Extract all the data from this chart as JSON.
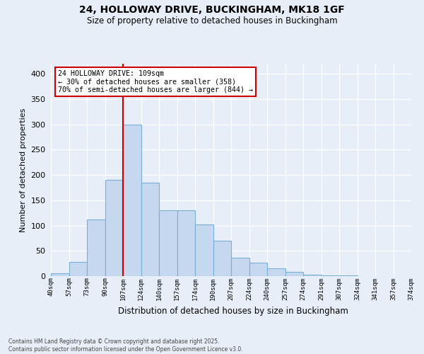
{
  "title1": "24, HOLLOWAY DRIVE, BUCKINGHAM, MK18 1GF",
  "title2": "Size of property relative to detached houses in Buckingham",
  "xlabel": "Distribution of detached houses by size in Buckingham",
  "ylabel": "Number of detached properties",
  "bar_labels": [
    "40sqm",
    "57sqm",
    "73sqm",
    "90sqm",
    "107sqm",
    "124sqm",
    "140sqm",
    "157sqm",
    "174sqm",
    "190sqm",
    "207sqm",
    "224sqm",
    "240sqm",
    "257sqm",
    "274sqm",
    "291sqm",
    "307sqm",
    "324sqm",
    "341sqm",
    "357sqm",
    "374sqm"
  ],
  "bar_heights": [
    5,
    28,
    112,
    190,
    300,
    185,
    130,
    130,
    102,
    70,
    37,
    26,
    15,
    8,
    3,
    1,
    1,
    0,
    0,
    0
  ],
  "bar_color": "#c5d8f0",
  "bar_edge_color": "#7aafd4",
  "bg_color": "#e8eef7",
  "grid_color": "#ffffff",
  "vline_x": 4,
  "vline_color": "#cc0000",
  "annotation_text": "24 HOLLOWAY DRIVE: 109sqm\n← 30% of detached houses are smaller (358)\n70% of semi-detached houses are larger (844) →",
  "annotation_box_color": "#ffffff",
  "annotation_border_color": "#cc0000",
  "footer_text": "Contains HM Land Registry data © Crown copyright and database right 2025.\nContains public sector information licensed under the Open Government Licence v3.0.",
  "ylim": [
    0,
    420
  ],
  "yticks": [
    0,
    50,
    100,
    150,
    200,
    250,
    300,
    350,
    400
  ]
}
